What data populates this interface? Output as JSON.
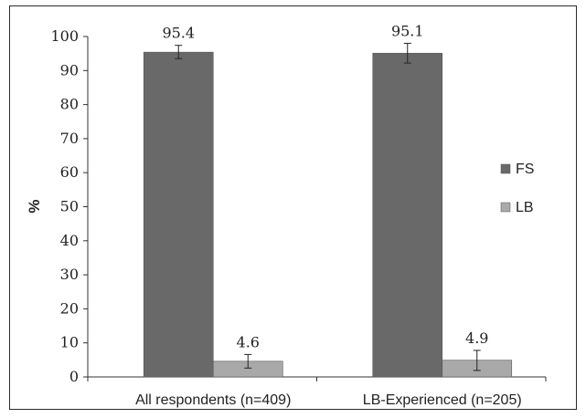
{
  "chart_data": {
    "type": "bar",
    "title": "",
    "xlabel": "",
    "ylabel": "%",
    "ylim": [
      0,
      100
    ],
    "yticks": [
      "0",
      "10",
      "20",
      "30",
      "40",
      "50",
      "60",
      "70",
      "80",
      "90",
      "100"
    ],
    "categories": [
      "All respondents  (n=409)",
      "LB-Experienced (n=205)"
    ],
    "series": [
      {
        "name": "FS",
        "color": "#696969",
        "values": [
          95.4,
          95.1
        ],
        "value_labels": [
          "95.4",
          "95.1"
        ],
        "error_low": [
          93.5,
          92.2
        ],
        "error_high": [
          97.4,
          98.0
        ]
      },
      {
        "name": "LB",
        "color": "#a9a9a9",
        "values": [
          4.6,
          4.9
        ],
        "value_labels": [
          "4.6",
          "4.9"
        ],
        "error_low": [
          2.6,
          1.9
        ],
        "error_high": [
          6.6,
          7.8
        ]
      }
    ],
    "grid": false,
    "legend_position": "right"
  }
}
